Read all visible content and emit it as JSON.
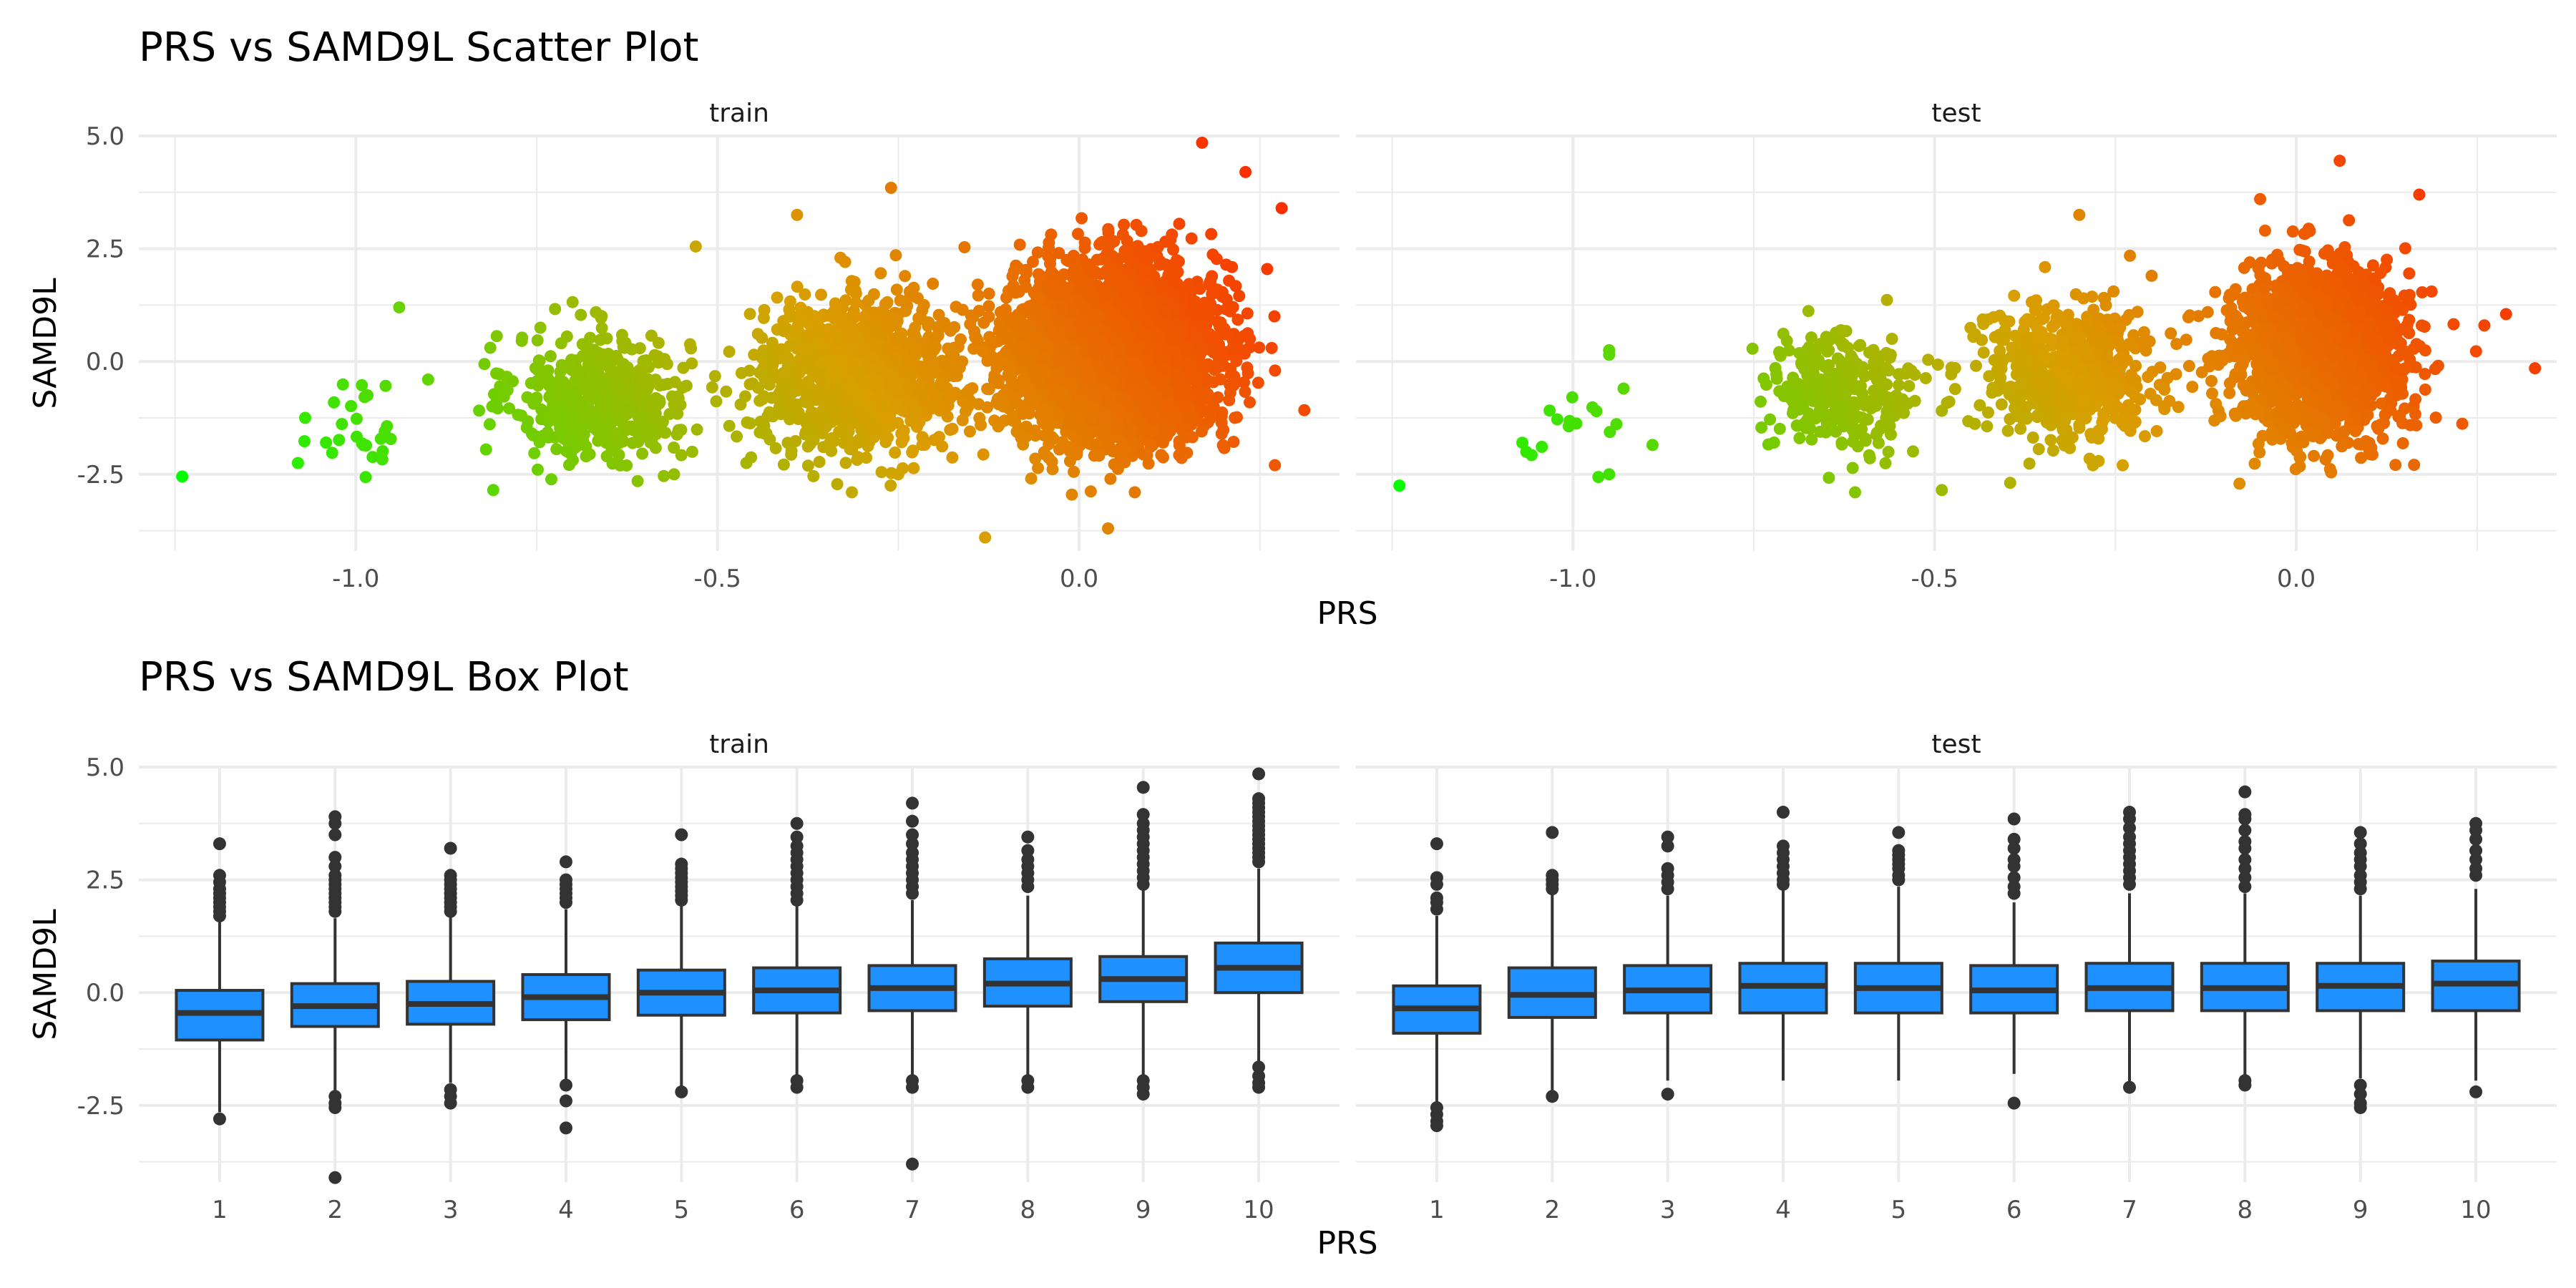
{
  "scatter_title": "PRS vs SAMD9L Scatter Plot",
  "box_title": "PRS vs SAMD9L Box Plot",
  "chart_data": [
    {
      "type": "scatter",
      "title": "PRS vs SAMD9L Scatter Plot",
      "xlabel": "PRS",
      "ylabel": "SAMD9L",
      "facets": [
        "train",
        "test"
      ],
      "ylim": [
        -4.2,
        5.0
      ],
      "y_ticks": [
        5.0,
        2.5,
        0.0,
        -2.5
      ],
      "y_tick_labels": [
        "5.0",
        "2.5",
        "0.0",
        "-2.5"
      ],
      "color_scale": {
        "low": "#00ff00",
        "mid": "#d9a000",
        "high": "#ff2000"
      },
      "panels": [
        {
          "facet": "train",
          "xlim": [
            -1.3,
            0.36
          ],
          "x_ticks": [
            -1.0,
            -0.5,
            0.0
          ],
          "x_tick_labels": [
            "-1.0",
            "-0.5",
            "0.0"
          ],
          "clusters": [
            {
              "x_center": -1.0,
              "y_center": -1.4,
              "x_sd": 0.04,
              "y_sd": 0.6,
              "n": 24
            },
            {
              "x_center": -0.66,
              "y_center": -0.8,
              "x_sd": 0.06,
              "y_sd": 0.7,
              "n": 500
            },
            {
              "x_center": -0.3,
              "y_center": -0.3,
              "x_sd": 0.07,
              "y_sd": 0.8,
              "n": 1100
            },
            {
              "x_center": 0.05,
              "y_center": 0.2,
              "x_sd": 0.07,
              "y_sd": 0.95,
              "n": 3500
            }
          ],
          "outliers": [
            {
              "x": -1.24,
              "y": -2.55
            },
            {
              "x": -0.94,
              "y": 1.2
            },
            {
              "x": -0.13,
              "y": -3.9
            },
            {
              "x": 0.04,
              "y": -3.7
            },
            {
              "x": -0.01,
              "y": -2.95
            },
            {
              "x": 0.17,
              "y": 4.85
            },
            {
              "x": 0.28,
              "y": 3.4
            },
            {
              "x": 0.27,
              "y": 1.0
            },
            {
              "x": -0.39,
              "y": 3.25
            },
            {
              "x": -0.26,
              "y": 3.85
            },
            {
              "x": -0.81,
              "y": -2.85
            },
            {
              "x": -0.09,
              "y": 2.0
            },
            {
              "x": -0.53,
              "y": 2.55
            },
            {
              "x": -0.56,
              "y": -2.5
            },
            {
              "x": 0.23,
              "y": 4.2
            },
            {
              "x": 0.26,
              "y": 2.05
            },
            {
              "x": -1.07,
              "y": -1.25
            },
            {
              "x": -1.08,
              "y": -2.25
            },
            {
              "x": -0.9,
              "y": -0.4
            },
            {
              "x": -0.96,
              "y": -1.55
            },
            {
              "x": -0.46,
              "y": -2.25
            },
            {
              "x": -0.25,
              "y": -2.5
            },
            {
              "x": -0.82,
              "y": -1.95
            },
            {
              "x": -0.33,
              "y": 2.3
            }
          ]
        },
        {
          "facet": "test",
          "xlim": [
            -1.3,
            0.36
          ],
          "x_ticks": [
            -1.0,
            -0.5,
            0.0
          ],
          "x_tick_labels": [
            "-1.0",
            "-0.5",
            "0.0"
          ],
          "clusters": [
            {
              "x_center": -1.0,
              "y_center": -1.5,
              "x_sd": 0.04,
              "y_sd": 0.45,
              "n": 14
            },
            {
              "x_center": -0.63,
              "y_center": -0.65,
              "x_sd": 0.05,
              "y_sd": 0.65,
              "n": 300
            },
            {
              "x_center": -0.32,
              "y_center": -0.3,
              "x_sd": 0.06,
              "y_sd": 0.75,
              "n": 600
            },
            {
              "x_center": 0.03,
              "y_center": 0.2,
              "x_sd": 0.06,
              "y_sd": 0.9,
              "n": 1800
            }
          ],
          "outliers": [
            {
              "x": -1.24,
              "y": -2.75
            },
            {
              "x": -0.95,
              "y": 0.25
            },
            {
              "x": -0.95,
              "y": 0.15
            },
            {
              "x": -0.3,
              "y": 3.25
            },
            {
              "x": 0.06,
              "y": 4.45
            },
            {
              "x": 0.29,
              "y": 1.05
            },
            {
              "x": 0.33,
              "y": -0.15
            },
            {
              "x": 0.26,
              "y": 0.8
            },
            {
              "x": -0.49,
              "y": -2.85
            },
            {
              "x": -0.61,
              "y": -2.9
            },
            {
              "x": -0.95,
              "y": -2.5
            },
            {
              "x": -1.07,
              "y": -1.8
            },
            {
              "x": -0.89,
              "y": -1.85
            },
            {
              "x": -0.93,
              "y": -0.6
            },
            {
              "x": -0.2,
              "y": 1.9
            },
            {
              "x": -0.24,
              "y": -2.3
            },
            {
              "x": -0.05,
              "y": 3.6
            },
            {
              "x": 0.17,
              "y": 3.7
            }
          ]
        }
      ]
    },
    {
      "type": "box",
      "title": "PRS vs SAMD9L Box Plot",
      "xlabel": "PRS",
      "ylabel": "SAMD9L",
      "facets": [
        "train",
        "test"
      ],
      "categories": [
        "1",
        "2",
        "3",
        "4",
        "5",
        "6",
        "7",
        "8",
        "9",
        "10"
      ],
      "ylim": [
        -4.2,
        5.0
      ],
      "y_ticks": [
        5.0,
        2.5,
        0.0,
        -2.5
      ],
      "y_tick_labels": [
        "5.0",
        "2.5",
        "0.0",
        "-2.5"
      ],
      "fill": "#1e90ff",
      "panels": [
        {
          "facet": "train",
          "boxes": [
            {
              "q1": -1.05,
              "median": -0.45,
              "q3": 0.05,
              "whisker_low": -2.65,
              "whisker_high": 1.65,
              "outliers": [
                3.3,
                2.6,
                2.45,
                2.3,
                2.2,
                2.1,
                2.0,
                1.9,
                1.8,
                1.7,
                -2.8
              ]
            },
            {
              "q1": -0.75,
              "median": -0.3,
              "q3": 0.2,
              "whisker_low": -2.2,
              "whisker_high": 1.65,
              "outliers": [
                3.9,
                3.75,
                3.5,
                3.0,
                2.8,
                2.6,
                2.5,
                2.4,
                2.3,
                2.2,
                2.1,
                2.0,
                1.9,
                1.8,
                -2.3,
                -2.45,
                -2.55,
                -4.1
              ]
            },
            {
              "q1": -0.7,
              "median": -0.25,
              "q3": 0.25,
              "whisker_low": -2.0,
              "whisker_high": 1.7,
              "outliers": [
                3.2,
                2.6,
                2.5,
                2.4,
                2.3,
                2.2,
                2.1,
                2.0,
                1.9,
                1.8,
                -2.15,
                -2.3,
                -2.45
              ]
            },
            {
              "q1": -0.6,
              "median": -0.1,
              "q3": 0.4,
              "whisker_low": -1.95,
              "whisker_high": 1.85,
              "outliers": [
                2.9,
                2.5,
                2.4,
                2.3,
                2.2,
                2.1,
                2.0,
                -2.05,
                -2.4,
                -3.0
              ]
            },
            {
              "q1": -0.5,
              "median": 0.0,
              "q3": 0.5,
              "whisker_low": -2.15,
              "whisker_high": 1.95,
              "outliers": [
                3.5,
                2.85,
                2.75,
                2.65,
                2.55,
                2.45,
                2.35,
                2.25,
                2.15,
                2.05,
                -2.2
              ]
            },
            {
              "q1": -0.45,
              "median": 0.05,
              "q3": 0.55,
              "whisker_low": -1.95,
              "whisker_high": 1.95,
              "outliers": [
                3.75,
                3.45,
                3.25,
                3.1,
                2.95,
                2.8,
                2.65,
                2.5,
                2.35,
                2.2,
                2.05,
                -1.95,
                -2.1
              ]
            },
            {
              "q1": -0.4,
              "median": 0.1,
              "q3": 0.6,
              "whisker_low": -1.9,
              "whisker_high": 2.05,
              "outliers": [
                4.2,
                3.8,
                3.5,
                3.3,
                3.1,
                2.95,
                2.8,
                2.65,
                2.5,
                2.35,
                2.2,
                -1.95,
                -2.1,
                -3.8
              ]
            },
            {
              "q1": -0.3,
              "median": 0.2,
              "q3": 0.75,
              "whisker_low": -1.9,
              "whisker_high": 2.15,
              "outliers": [
                3.45,
                3.15,
                2.95,
                2.8,
                2.65,
                2.5,
                2.35,
                -1.95,
                -2.1
              ]
            },
            {
              "q1": -0.2,
              "median": 0.3,
              "q3": 0.8,
              "whisker_low": -1.9,
              "whisker_high": 2.3,
              "outliers": [
                4.55,
                3.95,
                3.75,
                3.6,
                3.45,
                3.3,
                3.15,
                3.0,
                2.85,
                2.7,
                2.55,
                2.4,
                -1.95,
                -2.1,
                -2.25
              ]
            },
            {
              "q1": 0.0,
              "median": 0.55,
              "q3": 1.1,
              "whisker_low": -1.6,
              "whisker_high": 2.75,
              "outliers": [
                4.85,
                4.3,
                4.2,
                4.1,
                4.0,
                3.9,
                3.8,
                3.7,
                3.6,
                3.5,
                3.4,
                3.3,
                3.2,
                3.1,
                3.0,
                2.9,
                -1.65,
                -1.85,
                -2.0,
                -2.1
              ]
            }
          ]
        },
        {
          "facet": "test",
          "boxes": [
            {
              "q1": -0.9,
              "median": -0.35,
              "q3": 0.15,
              "whisker_low": -2.45,
              "whisker_high": 1.7,
              "outliers": [
                3.3,
                2.55,
                2.4,
                2.1,
                2.0,
                1.85,
                -2.55,
                -2.7,
                -2.85,
                -2.95
              ]
            },
            {
              "q1": -0.55,
              "median": -0.05,
              "q3": 0.55,
              "whisker_low": -2.2,
              "whisker_high": 2.2,
              "outliers": [
                3.55,
                2.6,
                2.5,
                2.4,
                2.3,
                -2.3
              ]
            },
            {
              "q1": -0.45,
              "median": 0.05,
              "q3": 0.6,
              "whisker_low": -1.95,
              "whisker_high": 2.15,
              "outliers": [
                3.45,
                3.25,
                2.75,
                2.6,
                2.45,
                2.3,
                -2.25
              ]
            },
            {
              "q1": -0.45,
              "median": 0.15,
              "q3": 0.65,
              "whisker_low": -1.95,
              "whisker_high": 2.3,
              "outliers": [
                4.0,
                3.25,
                3.1,
                2.95,
                2.8,
                2.65,
                2.5,
                2.4
              ]
            },
            {
              "q1": -0.45,
              "median": 0.1,
              "q3": 0.65,
              "whisker_low": -1.95,
              "whisker_high": 2.35,
              "outliers": [
                3.55,
                3.15,
                3.05,
                2.95,
                2.85,
                2.75,
                2.6,
                2.5
              ]
            },
            {
              "q1": -0.45,
              "median": 0.05,
              "q3": 0.6,
              "whisker_low": -1.8,
              "whisker_high": 2.0,
              "outliers": [
                3.85,
                3.4,
                3.2,
                2.95,
                2.8,
                2.55,
                2.35,
                2.2,
                -2.45
              ]
            },
            {
              "q1": -0.4,
              "median": 0.1,
              "q3": 0.65,
              "whisker_low": -2.05,
              "whisker_high": 2.2,
              "outliers": [
                4.0,
                3.85,
                3.65,
                3.45,
                3.3,
                3.15,
                3.0,
                2.85,
                2.7,
                2.55,
                2.4,
                -2.1
              ]
            },
            {
              "q1": -0.4,
              "median": 0.1,
              "q3": 0.65,
              "whisker_low": -1.9,
              "whisker_high": 2.2,
              "outliers": [
                4.45,
                3.95,
                3.85,
                3.6,
                3.35,
                3.2,
                2.95,
                2.75,
                2.55,
                2.35,
                -1.95,
                -2.05
              ]
            },
            {
              "q1": -0.4,
              "median": 0.15,
              "q3": 0.65,
              "whisker_low": -1.9,
              "whisker_high": 2.15,
              "outliers": [
                3.55,
                3.3,
                3.1,
                2.95,
                2.8,
                2.6,
                2.45,
                2.3,
                -2.05,
                -2.25,
                -2.45,
                -2.55
              ]
            },
            {
              "q1": -0.4,
              "median": 0.2,
              "q3": 0.7,
              "whisker_low": -1.95,
              "whisker_high": 2.3,
              "outliers": [
                3.75,
                3.6,
                3.4,
                3.15,
                2.95,
                2.75,
                2.6,
                -2.2
              ]
            }
          ]
        }
      ]
    }
  ]
}
